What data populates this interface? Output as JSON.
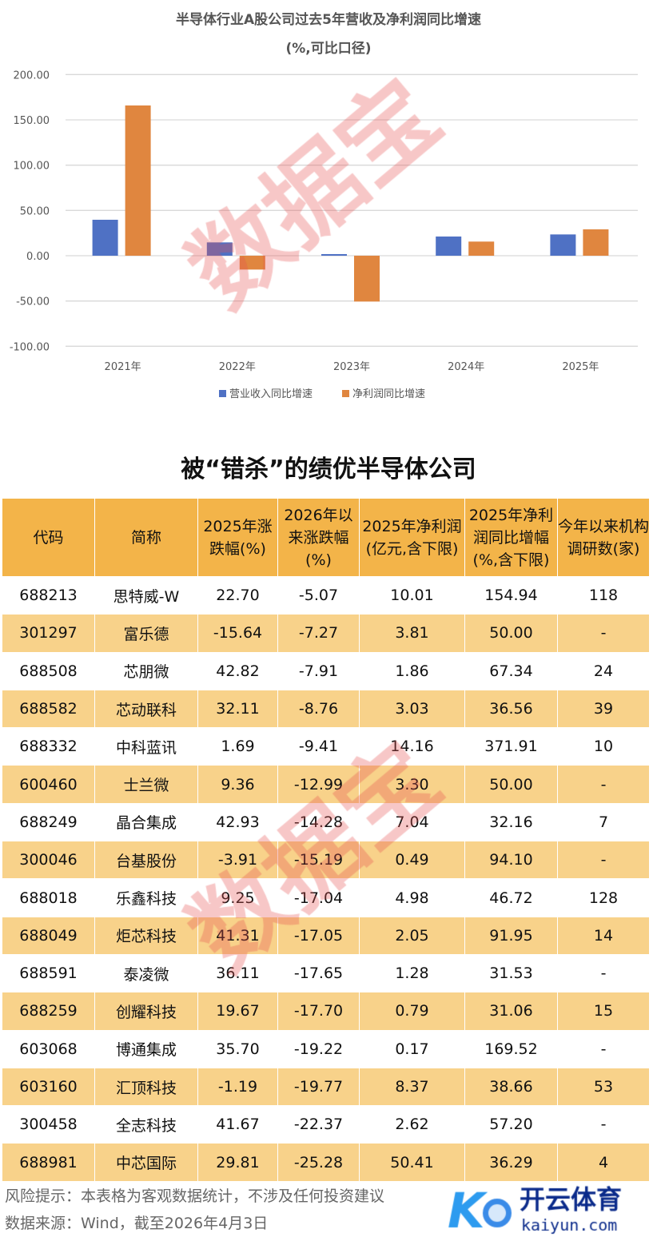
{
  "chart_data": {
    "type": "bar",
    "title": "半导体行业A股公司过去5年营收及净利润同比增速",
    "subtitle": "(%,可比口径)",
    "categories": [
      "2021年",
      "2022年",
      "2023年",
      "2024年",
      "2025年"
    ],
    "yticks": [
      "200.00",
      "150.00",
      "100.00",
      "50.00",
      "0.00",
      "-50.00",
      "-100.00"
    ],
    "ylim": [
      -100,
      200
    ],
    "grid": true,
    "legend_position": "bottom",
    "series": [
      {
        "name": "营业收入同比增速",
        "color": "#4F71C4",
        "values": [
          39.7,
          14.7,
          1.8,
          21.2,
          23.5
        ]
      },
      {
        "name": "净利润同比增速",
        "color": "#E0863F",
        "values": [
          165.9,
          -15.3,
          -50.6,
          15.6,
          29.1
        ]
      }
    ]
  },
  "watermark": "数据宝",
  "table": {
    "title": "被“错杀”的绩优半导体公司",
    "headers": [
      "代码",
      "简称",
      "2025年涨跌幅(%)",
      "2026年以来涨跌幅(%)",
      "2025年净利润(亿元,含下限)",
      "2025年净利润同比增幅(%,含下限)",
      "今年以来机构调研数(家)"
    ],
    "rows": [
      [
        "688213",
        "思特威-W",
        "22.70",
        "-5.07",
        "10.01",
        "154.94",
        "118"
      ],
      [
        "301297",
        "富乐德",
        "-15.64",
        "-7.27",
        "3.81",
        "50.00",
        "-"
      ],
      [
        "688508",
        "芯朋微",
        "42.82",
        "-7.91",
        "1.86",
        "67.34",
        "24"
      ],
      [
        "688582",
        "芯动联科",
        "32.11",
        "-8.76",
        "3.03",
        "36.56",
        "39"
      ],
      [
        "688332",
        "中科蓝讯",
        "1.69",
        "-9.41",
        "14.16",
        "371.91",
        "10"
      ],
      [
        "600460",
        "士兰微",
        "9.36",
        "-12.99",
        "3.30",
        "50.00",
        "-"
      ],
      [
        "688249",
        "晶合集成",
        "42.93",
        "-14.28",
        "7.04",
        "32.16",
        "7"
      ],
      [
        "300046",
        "台基股份",
        "-3.91",
        "-15.19",
        "0.49",
        "94.10",
        "-"
      ],
      [
        "688018",
        "乐鑫科技",
        "9.25",
        "-17.04",
        "4.98",
        "46.72",
        "128"
      ],
      [
        "688049",
        "炬芯科技",
        "41.31",
        "-17.05",
        "2.05",
        "91.95",
        "14"
      ],
      [
        "688591",
        "泰凌微",
        "36.11",
        "-17.65",
        "1.28",
        "31.53",
        "-"
      ],
      [
        "688259",
        "创耀科技",
        "19.67",
        "-17.70",
        "0.79",
        "31.06",
        "15"
      ],
      [
        "603068",
        "博通集成",
        "35.70",
        "-19.22",
        "0.17",
        "169.52",
        "-"
      ],
      [
        "603160",
        "汇顶科技",
        "-1.19",
        "-19.77",
        "8.37",
        "38.66",
        "53"
      ],
      [
        "300458",
        "全志科技",
        "41.67",
        "-22.37",
        "2.62",
        "57.20",
        "-"
      ],
      [
        "688981",
        "中芯国际",
        "29.81",
        "-25.28",
        "50.41",
        "36.29",
        "4"
      ]
    ]
  },
  "footer": {
    "risk": "风险提示：本表格为客观数据统计，不涉及任何投资建议",
    "source": "数据来源：Wind，截至2026年4月3日"
  },
  "logo": {
    "name": "开云体育",
    "url_text": "kaiyun.com"
  }
}
